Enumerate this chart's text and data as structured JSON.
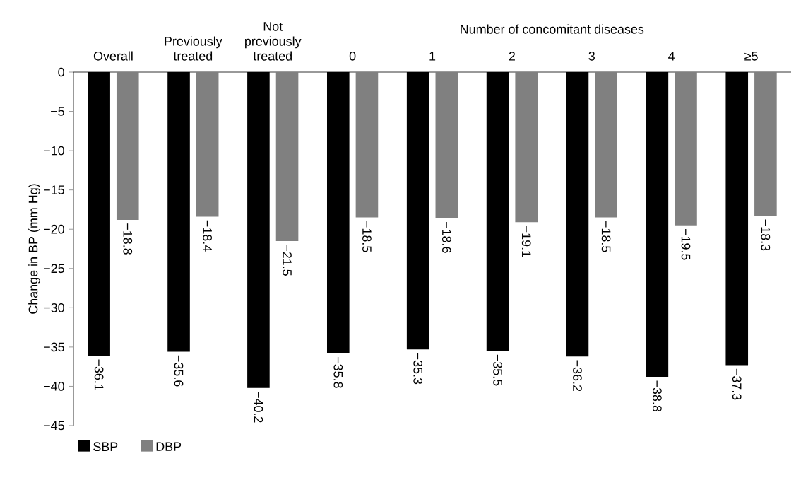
{
  "chart_data": {
    "type": "bar",
    "ylabel": "Change in BP (mm Hg)",
    "categories": [
      "Overall",
      "Previously treated",
      "Not previously treated",
      "0",
      "1",
      "2",
      "3",
      "4",
      "≥5"
    ],
    "series": [
      {
        "name": "SBP",
        "color": "#000000",
        "values": [
          -36.1,
          -35.6,
          -40.2,
          -35.8,
          -35.3,
          -35.5,
          -36.2,
          -38.8,
          -37.3
        ],
        "value_labels": [
          "−36.1",
          "−35.6",
          "−40.2",
          "−35.8",
          "−35.3",
          "−35.5",
          "−36.2",
          "−38.8",
          "−37.3"
        ]
      },
      {
        "name": "DBP",
        "color": "#808080",
        "values": [
          -18.8,
          -18.4,
          -21.5,
          -18.5,
          -18.6,
          -19.1,
          -18.5,
          -19.5,
          -18.3
        ],
        "value_labels": [
          "−18.8",
          "−18.4",
          "−21.5",
          "−18.5",
          "−18.6",
          "−19.1",
          "−18.5",
          "−19.5",
          "−18.3"
        ]
      }
    ],
    "ylim": [
      -45,
      0
    ],
    "yticks": [
      {
        "value": -45,
        "label": "−45"
      },
      {
        "value": -40,
        "label": "−40"
      },
      {
        "value": -35,
        "label": "−35"
      },
      {
        "value": -30,
        "label": "−30"
      },
      {
        "value": -25,
        "label": "−25"
      },
      {
        "value": -20,
        "label": "−20"
      },
      {
        "value": -15,
        "label": "−15"
      },
      {
        "value": -10,
        "label": "−10"
      },
      {
        "value": -5,
        "label": "−5"
      },
      {
        "value": 0,
        "label": "0"
      }
    ],
    "annotations": [
      "Number of concomitant diseases"
    ],
    "legend": "bottom left",
    "grid": false
  }
}
